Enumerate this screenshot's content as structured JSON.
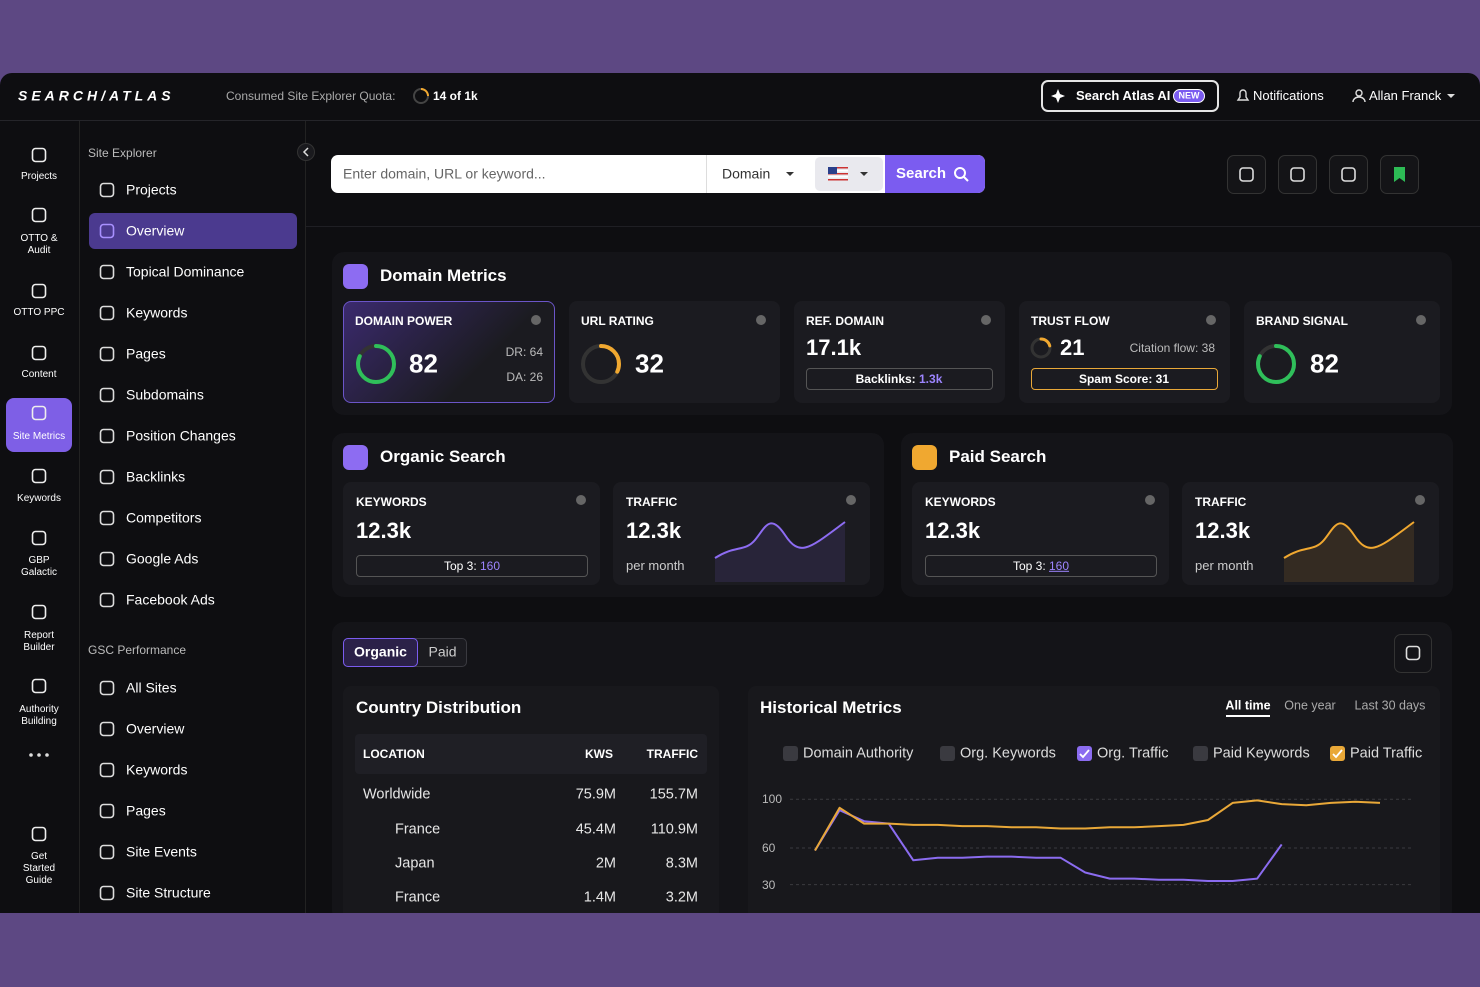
{
  "header": {
    "logo": "SEARCH/ATLAS",
    "quota_label": "Consumed Site Explorer Quota:",
    "quota_value": "14 of 1k",
    "ai_button": "Search Atlas AI",
    "ai_badge": "NEW",
    "notifications": "Notifications",
    "user": "Allan Franck"
  },
  "nav_rail": [
    {
      "lines": [
        "Projects"
      ]
    },
    {
      "lines": [
        "OTTO &",
        "Audit"
      ]
    },
    {
      "lines": [
        "OTTO PPC"
      ]
    },
    {
      "lines": [
        "Content"
      ]
    },
    {
      "lines": [
        "Site Metrics"
      ],
      "active": true
    },
    {
      "lines": [
        "Keywords"
      ]
    },
    {
      "lines": [
        "GBP",
        "Galactic"
      ]
    },
    {
      "lines": [
        "Report",
        "Builder"
      ]
    },
    {
      "lines": [
        "Authority",
        "Building"
      ]
    },
    {
      "lines": [
        "Get",
        "Started",
        "Guide"
      ]
    }
  ],
  "sidebar": {
    "explorer_title": "Site Explorer",
    "explorer_items": [
      {
        "label": "Projects"
      },
      {
        "label": "Overview",
        "active": true
      },
      {
        "label": "Topical Dominance"
      },
      {
        "label": "Keywords"
      },
      {
        "label": "Pages"
      },
      {
        "label": "Subdomains"
      },
      {
        "label": "Position Changes"
      },
      {
        "label": "Backlinks"
      },
      {
        "label": "Competitors"
      },
      {
        "label": "Google Ads"
      },
      {
        "label": "Facebook Ads"
      }
    ],
    "gsc_title": "GSC Performance",
    "gsc_items": [
      {
        "label": "All Sites"
      },
      {
        "label": "Overview"
      },
      {
        "label": "Keywords"
      },
      {
        "label": "Pages"
      },
      {
        "label": "Site Events"
      },
      {
        "label": "Site Structure"
      }
    ]
  },
  "search": {
    "placeholder": "Enter domain, URL or keyword...",
    "mode": "Domain",
    "button": "Search"
  },
  "domain_metrics": {
    "title": "Domain Metrics",
    "scale_max": 100,
    "domain_power": {
      "label": "DOMAIN POWER",
      "value": 82,
      "dr": "DR: 64",
      "da": "DA: 26"
    },
    "url_rating": {
      "label": "URL RATING",
      "value": 32
    },
    "ref_domain": {
      "label": "REF. DOMAIN",
      "value": "17.1k",
      "backlinks_label": "Backlinks:",
      "backlinks_value": "1.3k"
    },
    "trust_flow": {
      "label": "TRUST FLOW",
      "value": 21,
      "citation_flow": "Citation flow: 38",
      "spam_score": "Spam Score: 31"
    },
    "brand_signal": {
      "label": "BRAND SIGNAL",
      "value": 82
    }
  },
  "organic_search": {
    "title": "Organic Search",
    "keywords": {
      "label": "KEYWORDS",
      "value": "12.3k",
      "top3_label": "Top 3:",
      "top3_value": 160
    },
    "traffic": {
      "label": "TRAFFIC",
      "value": "12.3k",
      "unit": "per month"
    }
  },
  "paid_search": {
    "title": "Paid Search",
    "keywords": {
      "label": "KEYWORDS",
      "value": "12.3k",
      "top3_label": "Top 3:",
      "top3_value": 160
    },
    "traffic": {
      "label": "TRAFFIC",
      "value": "12.3k",
      "unit": "per month"
    }
  },
  "tabs": [
    {
      "label": "Organic",
      "active": true
    },
    {
      "label": "Paid"
    }
  ],
  "country_distribution": {
    "title": "Country Distribution",
    "columns": [
      "LOCATION",
      "KWS",
      "TRAFFIC"
    ],
    "rows": [
      [
        "Worldwide",
        "75.9M",
        "155.7M"
      ],
      [
        "France",
        "45.4M",
        "110.9M"
      ],
      [
        "Japan",
        "2M",
        "8.3M"
      ],
      [
        "France",
        "1.4M",
        "3.2M"
      ]
    ]
  },
  "chart_data": {
    "type": "line",
    "title": "Historical Metrics",
    "ranges": [
      {
        "label": "All time",
        "active": true
      },
      {
        "label": "One year"
      },
      {
        "label": "Last 30 days"
      }
    ],
    "ylim": [
      15,
      110
    ],
    "yticks": [
      30,
      60,
      100
    ],
    "grid": true,
    "series": [
      {
        "name": "Domain Authority",
        "checked": false
      },
      {
        "name": "Org. Keywords",
        "checked": false
      },
      {
        "name": "Org. Traffic",
        "checked": true,
        "color": "#8b6cf0",
        "values": [
          58,
          91,
          82,
          80,
          50,
          52,
          52,
          53,
          53,
          52,
          52,
          40,
          35,
          35,
          34,
          34,
          33,
          33,
          35,
          63,
          null,
          null,
          null,
          null
        ]
      },
      {
        "name": "Paid Keywords",
        "checked": false
      },
      {
        "name": "Paid Traffic",
        "checked": true,
        "color": "#e9a838",
        "values": [
          58,
          93,
          80,
          80,
          79,
          79,
          78,
          78,
          77,
          77,
          76,
          76,
          77,
          77,
          78,
          79,
          83,
          97,
          99,
          96,
          95,
          97,
          98,
          97
        ]
      }
    ]
  }
}
